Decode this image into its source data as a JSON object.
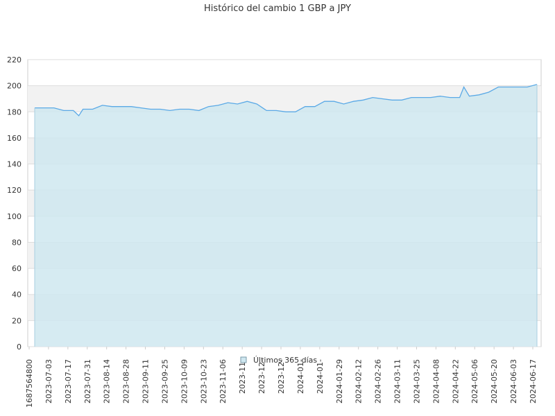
{
  "chart_data": {
    "type": "area",
    "title": "Histórico del cambio 1 GBP a JPY",
    "xlabel": "",
    "ylabel": "",
    "ylim": [
      0,
      220
    ],
    "y_ticks": [
      0,
      20,
      40,
      60,
      80,
      100,
      120,
      140,
      160,
      180,
      200,
      220
    ],
    "x_tick_labels": [
      "1687564800",
      "2023-07-03",
      "2023-07-17",
      "2023-07-31",
      "2023-08-14",
      "2023-08-28",
      "2023-09-11",
      "2023-09-25",
      "2023-10-09",
      "2023-10-23",
      "2023-11-06",
      "2023-11-",
      "2023-12-",
      "2023-12-",
      "2024-01-",
      "2024-01-",
      "2024-01-29",
      "2024-02-12",
      "2024-02-26",
      "2024-03-11",
      "2024-03-25",
      "2024-04-08",
      "2024-04-22",
      "2024-05-06",
      "2024-05-20",
      "2024-06-03",
      "2024-06-17"
    ],
    "grid": true,
    "legend": "bottom-center",
    "colors": {
      "line": "#5aa9e6",
      "fill": "#cfe7f0",
      "band": "#f2f2f2",
      "grid": "#dddddd",
      "axis": "#cccccc"
    },
    "series": [
      {
        "name": "Últimos 365 días",
        "x": [
          "2023-06-24",
          "2023-07-01",
          "2023-07-08",
          "2023-07-15",
          "2023-07-22",
          "2023-07-26",
          "2023-07-29",
          "2023-08-05",
          "2023-08-12",
          "2023-08-19",
          "2023-08-26",
          "2023-09-02",
          "2023-09-09",
          "2023-09-16",
          "2023-09-23",
          "2023-09-30",
          "2023-10-07",
          "2023-10-14",
          "2023-10-21",
          "2023-10-28",
          "2023-11-04",
          "2023-11-11",
          "2023-11-18",
          "2023-11-25",
          "2023-12-02",
          "2023-12-09",
          "2023-12-16",
          "2023-12-23",
          "2023-12-30",
          "2024-01-06",
          "2024-01-13",
          "2024-01-20",
          "2024-01-27",
          "2024-02-03",
          "2024-02-10",
          "2024-02-17",
          "2024-02-24",
          "2024-03-02",
          "2024-03-09",
          "2024-03-16",
          "2024-03-23",
          "2024-03-30",
          "2024-04-06",
          "2024-04-13",
          "2024-04-20",
          "2024-04-27",
          "2024-04-30",
          "2024-05-04",
          "2024-05-11",
          "2024-05-18",
          "2024-05-25",
          "2024-06-01",
          "2024-06-08",
          "2024-06-15",
          "2024-06-22"
        ],
        "values": [
          183,
          183,
          183,
          181,
          181,
          177,
          182,
          182,
          185,
          184,
          184,
          184,
          183,
          182,
          182,
          181,
          182,
          182,
          181,
          184,
          185,
          187,
          186,
          188,
          186,
          181,
          181,
          180,
          180,
          184,
          184,
          188,
          188,
          186,
          188,
          189,
          191,
          190,
          189,
          189,
          191,
          191,
          191,
          192,
          191,
          191,
          199,
          192,
          193,
          195,
          199,
          199,
          199,
          199,
          201
        ]
      }
    ]
  }
}
